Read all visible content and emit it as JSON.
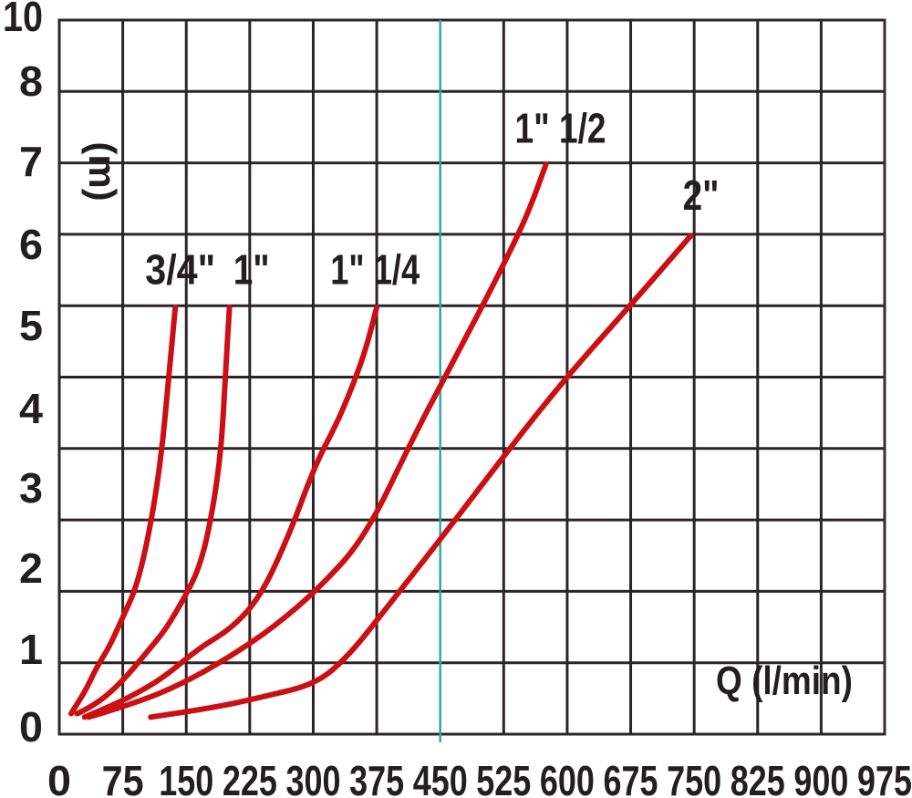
{
  "chart_data": {
    "type": "line",
    "title": "",
    "xlabel": "Q (l/min)",
    "ylabel": "(m)",
    "xlim": [
      0,
      975
    ],
    "ylim": [
      0,
      10
    ],
    "grid": "on",
    "x_tick_labels": [
      "0",
      "75",
      "150",
      "225",
      "300",
      "375",
      "450",
      "525",
      "600",
      "675",
      "750",
      "825",
      "900",
      "975"
    ],
    "y_tick_labels": [
      "10",
      "8",
      "7",
      "6",
      "5",
      "4",
      "3",
      "2",
      "1",
      "0"
    ],
    "highlighted_x_gridline": 450,
    "legend_position": "labels-on-curves",
    "series": [
      {
        "name": "3/4\"",
        "label_anchor": [
          143,
          5.53
        ],
        "points": [
          [
            14,
            0.24
          ],
          [
            22,
            0.37
          ],
          [
            32,
            0.53
          ],
          [
            45,
            0.8
          ],
          [
            59,
            1.02
          ],
          [
            75,
            1.37
          ],
          [
            92,
            1.74
          ],
          [
            108,
            2.44
          ],
          [
            121,
            3.29
          ],
          [
            129,
            4.15
          ],
          [
            137,
            5
          ]
        ]
      },
      {
        "name": "1\"",
        "label_anchor": [
          227,
          5.53
        ],
        "points": [
          [
            21,
            0.24
          ],
          [
            32,
            0.29
          ],
          [
            54,
            0.43
          ],
          [
            81,
            0.69
          ],
          [
            105,
            0.98
          ],
          [
            126,
            1.23
          ],
          [
            149,
            1.62
          ],
          [
            165,
            1.94
          ],
          [
            178,
            2.44
          ],
          [
            191,
            3.28
          ],
          [
            196,
            4.15
          ],
          [
            201,
            5
          ]
        ]
      },
      {
        "name": "1\" 1/4",
        "label_anchor": [
          373,
          5.53
        ],
        "points": [
          [
            30,
            0.2
          ],
          [
            59,
            0.32
          ],
          [
            92,
            0.48
          ],
          [
            124,
            0.67
          ],
          [
            164,
            1
          ],
          [
            205,
            1.25
          ],
          [
            239,
            1.63
          ],
          [
            273,
            2.37
          ],
          [
            302,
            3.15
          ],
          [
            329,
            3.66
          ],
          [
            350,
            4.17
          ],
          [
            363,
            4.54
          ],
          [
            375,
            5
          ]
        ]
      },
      {
        "name": "1\" 1/2",
        "label_anchor": [
          592,
          7.48
        ],
        "points": [
          [
            35,
            0.2
          ],
          [
            92,
            0.37
          ],
          [
            145,
            0.59
          ],
          [
            199,
            0.89
          ],
          [
            253,
            1.25
          ],
          [
            307,
            1.71
          ],
          [
            361,
            2.3
          ],
          [
            418,
            3.47
          ],
          [
            450,
            4.08
          ],
          [
            499,
            5
          ],
          [
            530,
            5.72
          ],
          [
            555,
            6.35
          ],
          [
            575,
            7
          ]
        ]
      },
      {
        "name": "2\"",
        "label_anchor": [
          758,
          6.57
        ],
        "points": [
          [
            108,
            0.2
          ],
          [
            178,
            0.3
          ],
          [
            242,
            0.44
          ],
          [
            304,
            0.59
          ],
          [
            342,
            0.92
          ],
          [
            382,
            1.42
          ],
          [
            450,
            2.28
          ],
          [
            537,
            3.41
          ],
          [
            598,
            4.17
          ],
          [
            677,
            5.06
          ],
          [
            746,
            6
          ]
        ]
      }
    ]
  },
  "colors": {
    "background": "#ffffff",
    "grid": "#2b2526",
    "right_border": "#3c2a28",
    "highlight_gridline": "#2fa7ab",
    "curve": "#cc0f14",
    "text": "#231f20"
  }
}
